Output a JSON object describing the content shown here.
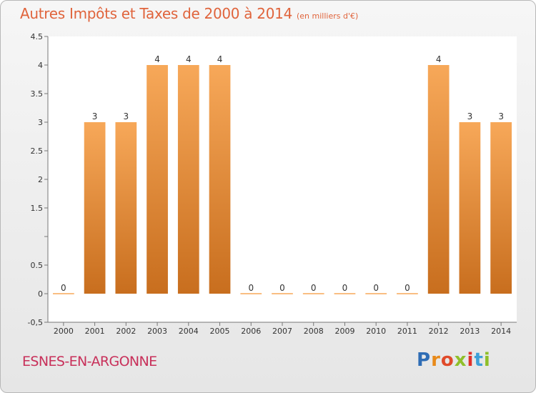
{
  "title": "Autres Impôts et Taxes de 2000 à 2014",
  "subtitle": "(en milliers d'€)",
  "location": "ESNES-EN-ARGONNE",
  "logo": {
    "text": "Proxiti",
    "letters": [
      "P",
      "r",
      "o",
      "x",
      "i",
      "t",
      "i"
    ]
  },
  "colors": {
    "title": "#e0643c",
    "location": "#c8305a",
    "bar_light": "#f7a859",
    "bar_dark": "#c86e1e"
  },
  "chart_data": {
    "type": "bar",
    "categories": [
      "2000",
      "2001",
      "2002",
      "2003",
      "2004",
      "2005",
      "2006",
      "2007",
      "2008",
      "2009",
      "2010",
      "2011",
      "2012",
      "2013",
      "2014"
    ],
    "values": [
      0,
      3,
      3,
      4,
      4,
      4,
      0,
      0,
      0,
      0,
      0,
      0,
      4,
      3,
      3
    ],
    "data_labels": [
      "0",
      "3",
      "3",
      "4",
      "4",
      "4",
      "0",
      "0",
      "0",
      "0",
      "0",
      "0",
      "4",
      "3",
      "3"
    ],
    "yticks": [
      -0.5,
      0,
      0.5,
      1,
      1.5,
      2,
      2.5,
      3,
      3.5,
      4,
      4.5
    ],
    "ytick_labels": [
      "-0,5",
      "0",
      "0.5",
      "",
      "1.5",
      "2",
      "2.5",
      "3",
      "3.5",
      "4",
      "4.5"
    ],
    "ylim": [
      -0.5,
      4.5
    ],
    "title": "Autres Impôts et Taxes de 2000 à 2014",
    "subtitle": "(en milliers d'€)",
    "xlabel": "",
    "ylabel": "",
    "grid": false,
    "legend": "none"
  }
}
